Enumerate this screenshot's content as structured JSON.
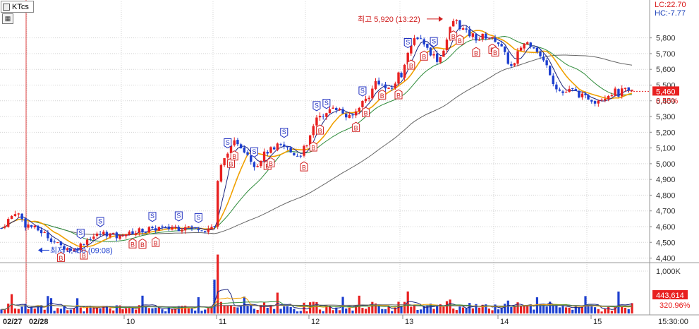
{
  "toolbar": {
    "ticker": "KTcs",
    "grid_icon": "table-icon"
  },
  "indicators": {
    "lc": "LC:22.70",
    "hc": "HC:-7.77"
  },
  "chart_data": {
    "type": "candlestick",
    "price_axis": {
      "ticks": [
        "5,800",
        "5,700",
        "5,600",
        "5,500",
        "5,400",
        "5,300",
        "5,200",
        "5,100",
        "5,000",
        "4,900",
        "4,800",
        "4,700",
        "4,600",
        "4,500",
        "4,400"
      ],
      "ylim": [
        4380,
        5960
      ]
    },
    "volume_axis": {
      "ticks": [
        "1,000K"
      ],
      "ylim": [
        0,
        1100
      ]
    },
    "x_labels": [
      "02/27",
      "02/28",
      "10",
      "11",
      "12",
      "13",
      "14",
      "15",
      "15:30:00"
    ],
    "current_price": {
      "label": "5,460",
      "value": 5460,
      "change": "0.55%"
    },
    "current_volume": {
      "label": "443,614",
      "ratio": "320.96%"
    },
    "high": {
      "label": "최고 5,920 (13:22)",
      "value": 5920
    },
    "low": {
      "label": "최저 4,450 (09:08)",
      "value": 4450
    },
    "colors": {
      "up": "#e82020",
      "down": "#1d3fcf",
      "ma5": "#1a237e",
      "ma10": "#f0a000",
      "ma20": "#2e8b3a",
      "ma60": "#666666"
    },
    "segments": [
      {
        "label": "02/27",
        "points": [
          4590,
          4630,
          4660,
          4700,
          4660,
          4610
        ]
      },
      {
        "label": "02/28",
        "points": [
          4610,
          4560,
          4480,
          4450,
          4530,
          4560,
          4530
        ]
      },
      {
        "label": "10",
        "points": [
          4560,
          4560,
          4550,
          4560,
          4570,
          4560,
          4580,
          4580,
          4570,
          4590,
          4570,
          4580,
          4600,
          4590,
          4590,
          4580,
          4590,
          4600,
          4600,
          4590,
          4590,
          4600,
          4610,
          4600,
          4590,
          4580,
          4590,
          4600,
          4580,
          4580,
          4590,
          4600
        ]
      },
      {
        "label": "11",
        "points": [
          4600,
          4960,
          5000,
          5080,
          5100,
          5150,
          5120,
          5090,
          5060,
          5000,
          4990,
          5040,
          5070,
          5090,
          5080,
          5120,
          5110,
          5100,
          5070,
          5060,
          5050,
          5100
        ]
      },
      {
        "label": "12",
        "points": [
          5100,
          5200,
          5290,
          5320,
          5280,
          5340,
          5370,
          5350,
          5330,
          5300,
          5290,
          5320,
          5370,
          5400,
          5420,
          5470,
          5540,
          5500,
          5480,
          5460,
          5500,
          5570
        ]
      },
      {
        "label": "13",
        "points": [
          5560,
          5650,
          5710,
          5740,
          5800,
          5810,
          5790,
          5760,
          5720,
          5700,
          5680,
          5650,
          5700,
          5760,
          5820,
          5900,
          5920,
          5880,
          5860,
          5840,
          5820,
          5820,
          5800,
          5790,
          5810,
          5810,
          5800,
          5790
        ]
      },
      {
        "label": "14",
        "points": [
          5790,
          5760,
          5700,
          5640,
          5600,
          5700,
          5760,
          5770,
          5760,
          5740,
          5680,
          5640,
          5590,
          5510,
          5470,
          5450,
          5460,
          5470,
          5450,
          5430,
          5420
        ]
      },
      {
        "label": "15",
        "points": [
          5420,
          5410,
          5400,
          5410,
          5420,
          5430,
          5440,
          5450,
          5460,
          5440,
          5460,
          5470,
          5450,
          5460
        ]
      }
    ],
    "buy_markers": [
      18,
      25,
      40,
      43,
      47,
      70,
      71,
      81,
      82,
      92,
      95,
      97,
      108,
      111,
      116,
      121,
      125,
      129,
      138,
      140,
      145,
      150,
      151
    ],
    "sell_markers": [
      24,
      30,
      46,
      54,
      60,
      69,
      77,
      86,
      96,
      99,
      110,
      124,
      132
    ]
  }
}
